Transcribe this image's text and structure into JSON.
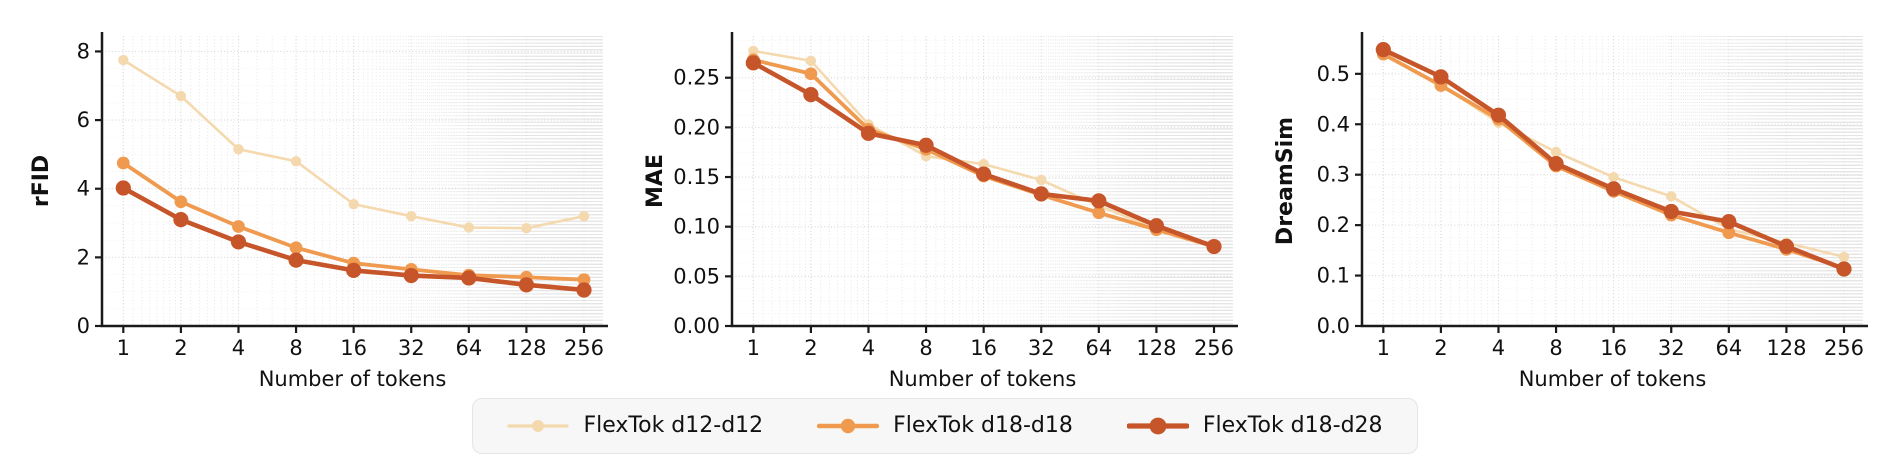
{
  "figure": {
    "background": "#ffffff",
    "text_color": "#111111",
    "axis_color": "#1a1a1a",
    "grid_major_color": "#d8d8d8",
    "grid_minor_color": "#e4e4e4"
  },
  "legend": {
    "position": "bottom-center",
    "items": [
      {
        "label": "FlexTok d12-d12",
        "color": "#F5D9AE"
      },
      {
        "label": "FlexTok d18-d18",
        "color": "#EF9A4F"
      },
      {
        "label": "FlexTok d18-d28",
        "color": "#C6552A"
      }
    ]
  },
  "chart_data": [
    {
      "type": "line",
      "title": "",
      "ylabel": "rFID",
      "xlabel": "Number of tokens",
      "xscale": "log2",
      "x": [
        1,
        2,
        4,
        8,
        16,
        32,
        64,
        128,
        256
      ],
      "xticklabels": [
        "1",
        "2",
        "4",
        "8",
        "16",
        "32",
        "64",
        "128",
        "256"
      ],
      "ylim": [
        0,
        8.45
      ],
      "yticks": [
        0,
        2,
        4,
        6,
        8
      ],
      "yticklabels": [
        "0",
        "2",
        "4",
        "6",
        "8"
      ],
      "grid": true,
      "series": [
        {
          "name": "FlexTok d12-d12",
          "color": "#F5D9AE",
          "values": [
            7.75,
            6.7,
            5.15,
            4.8,
            3.55,
            3.2,
            2.87,
            2.85,
            3.2
          ]
        },
        {
          "name": "FlexTok d18-d18",
          "color": "#EF9A4F",
          "values": [
            4.75,
            3.62,
            2.9,
            2.28,
            1.83,
            1.65,
            1.48,
            1.42,
            1.35
          ]
        },
        {
          "name": "FlexTok d18-d28",
          "color": "#C6552A",
          "values": [
            4.02,
            3.1,
            2.45,
            1.92,
            1.62,
            1.47,
            1.4,
            1.2,
            1.05
          ]
        }
      ]
    },
    {
      "type": "line",
      "title": "",
      "ylabel": "MAE",
      "xlabel": "Number of tokens",
      "xscale": "log2",
      "x": [
        1,
        2,
        4,
        8,
        16,
        32,
        64,
        128,
        256
      ],
      "xticklabels": [
        "1",
        "2",
        "4",
        "8",
        "16",
        "32",
        "64",
        "128",
        "256"
      ],
      "ylim": [
        0,
        0.292
      ],
      "yticks": [
        0,
        0.05,
        0.1,
        0.15,
        0.2,
        0.25
      ],
      "yticklabels": [
        "0.00",
        "0.05",
        "0.10",
        "0.15",
        "0.20",
        "0.25"
      ],
      "grid": true,
      "series": [
        {
          "name": "FlexTok d12-d12",
          "color": "#F5D9AE",
          "values": [
            0.277,
            0.267,
            0.203,
            0.171,
            0.163,
            0.147,
            0.121,
            0.098,
            0.081
          ]
        },
        {
          "name": "FlexTok d18-d18",
          "color": "#EF9A4F",
          "values": [
            0.268,
            0.254,
            0.198,
            0.178,
            0.151,
            0.132,
            0.114,
            0.097,
            0.08
          ]
        },
        {
          "name": "FlexTok d18-d28",
          "color": "#C6552A",
          "values": [
            0.265,
            0.233,
            0.194,
            0.182,
            0.153,
            0.133,
            0.126,
            0.101,
            0.08
          ]
        }
      ]
    },
    {
      "type": "line",
      "title": "",
      "ylabel": "DreamSim",
      "xlabel": "Number of tokens",
      "xscale": "log2",
      "x": [
        1,
        2,
        4,
        8,
        16,
        32,
        64,
        128,
        256
      ],
      "xticklabels": [
        "1",
        "2",
        "4",
        "8",
        "16",
        "32",
        "64",
        "128",
        "256"
      ],
      "ylim": [
        0,
        0.575
      ],
      "yticks": [
        0,
        0.1,
        0.2,
        0.3,
        0.4,
        0.5
      ],
      "yticklabels": [
        "0.0",
        "0.1",
        "0.2",
        "0.3",
        "0.4",
        "0.5"
      ],
      "grid": true,
      "series": [
        {
          "name": "FlexTok d12-d12",
          "color": "#F5D9AE",
          "values": [
            0.54,
            0.478,
            0.403,
            0.345,
            0.295,
            0.257,
            0.192,
            0.165,
            0.137
          ]
        },
        {
          "name": "FlexTok d18-d18",
          "color": "#EF9A4F",
          "values": [
            0.539,
            0.477,
            0.41,
            0.317,
            0.267,
            0.22,
            0.185,
            0.152,
            0.115
          ]
        },
        {
          "name": "FlexTok d18-d28",
          "color": "#C6552A",
          "values": [
            0.548,
            0.494,
            0.418,
            0.322,
            0.272,
            0.227,
            0.207,
            0.158,
            0.113
          ]
        }
      ]
    }
  ]
}
